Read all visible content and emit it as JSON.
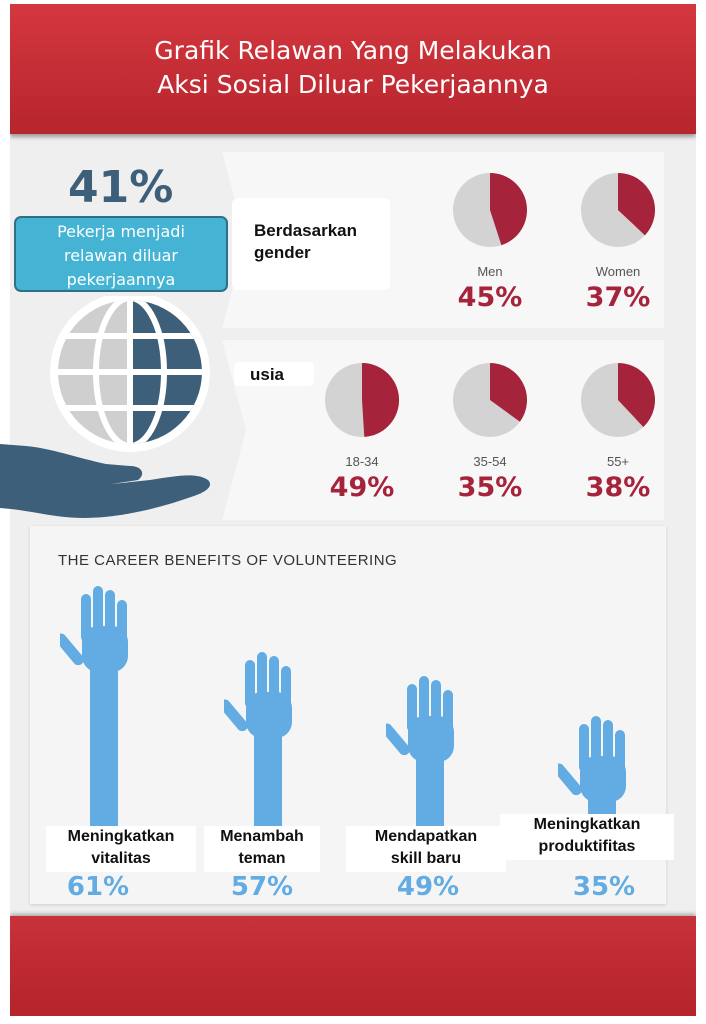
{
  "header": {
    "title_line1": "Grafik Relawan Yang Melakukan",
    "title_line2": "Aksi Sosial Diluar Pekerjaannya"
  },
  "intro": {
    "percentage": "41%",
    "callout_line1": "Pekerja menjadi",
    "callout_line2": "relawan diluar",
    "callout_line3": "pekerjaannya"
  },
  "gender": {
    "title_line1": "Berdasarkan",
    "title_line2": "gender",
    "items": [
      {
        "label": "Men",
        "value": "45%",
        "fraction": 0.45
      },
      {
        "label": "Women",
        "value": "37%",
        "fraction": 0.37
      }
    ]
  },
  "age": {
    "title": "usia",
    "items": [
      {
        "label": "18-34",
        "value": "49%",
        "fraction": 0.49
      },
      {
        "label": "35-54",
        "value": "35%",
        "fraction": 0.35
      },
      {
        "label": "55+",
        "value": "38%",
        "fraction": 0.38
      }
    ]
  },
  "benefits": {
    "title": "THE CAREER BENEFITS OF VOLUNTEERING",
    "items": [
      {
        "label_line1": "Meningkatkan",
        "label_line2": "vitalitas",
        "value": "61%",
        "fraction": 0.61
      },
      {
        "label_line1": "Menambah",
        "label_line2": "teman",
        "value": "57%",
        "fraction": 0.57
      },
      {
        "label_line1": "Mendapatkan",
        "label_line2": "skill baru",
        "value": "49%",
        "fraction": 0.49
      },
      {
        "label_line1": "Meningkatkan",
        "label_line2": "produktifitas",
        "value": "35%",
        "fraction": 0.35
      }
    ]
  },
  "colors": {
    "header_red": "#c52f37",
    "pie_red": "#a5233b",
    "pie_grey": "#d3d3d3",
    "callout_blue": "#45b3d4",
    "hand_blue": "#62abe3",
    "globe_navy": "#3e5f79"
  }
}
